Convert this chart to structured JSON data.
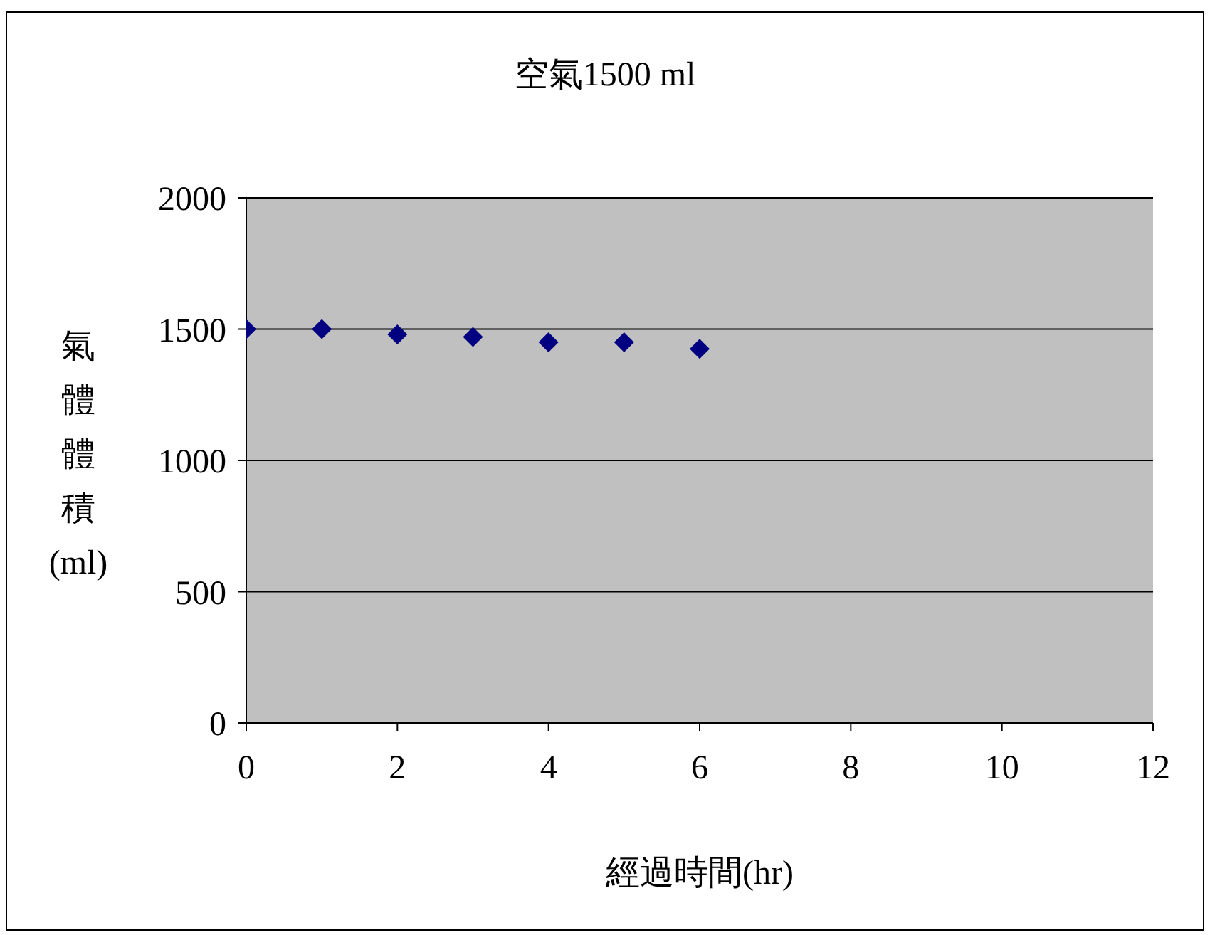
{
  "chart_data": {
    "type": "scatter",
    "title": "空氣1500 ml",
    "xlabel": "經過時間(hr)",
    "ylabel": "氣體體積(ml)",
    "x": [
      0,
      1,
      2,
      3,
      4,
      5,
      6
    ],
    "series": [
      {
        "color": "#000080",
        "values": [
          1500,
          1500,
          1480,
          1470,
          1450,
          1450,
          1425
        ]
      }
    ],
    "xlim": [
      0,
      12
    ],
    "xticks": [
      0,
      2,
      4,
      6,
      8,
      10,
      12
    ],
    "ylim": [
      0,
      2000
    ],
    "yticks": [
      0,
      500,
      1000,
      1500,
      2000
    ],
    "grid": "y",
    "marker": "diamond",
    "legend": false
  }
}
